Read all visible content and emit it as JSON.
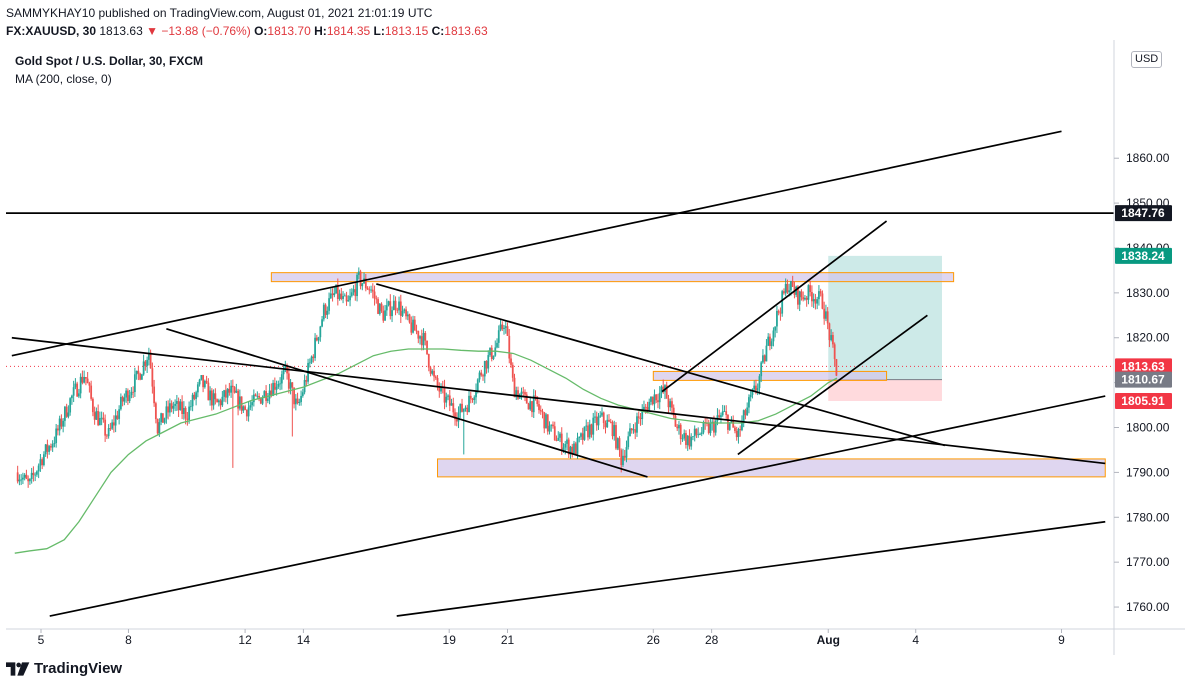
{
  "header": {
    "publisher_line": "SAMMYKHAY10 published on TradingView.com, August 01, 2021 21:01:19 UTC",
    "symbol": "FX:XAUUSD, 30",
    "last": "1813.63",
    "change": "▼ −13.88 (−0.76%)",
    "o_label": "O:",
    "o": "1813.70",
    "h_label": "H:",
    "h": "1814.35",
    "l_label": "L:",
    "l": "1813.15",
    "c_label": "C:",
    "c": "1813.63"
  },
  "legend": {
    "title": "Gold Spot / U.S. Dollar, 30, FXCM",
    "indicator": "MA (200, close, 0)"
  },
  "currency_button": "USD",
  "colors": {
    "up": "#26a69a",
    "down": "#ef5350",
    "ma": "#66bb6a",
    "zone_fill": "#d1c4e9",
    "zone_border": "#ff9800",
    "target": "#b2dfdb",
    "stop": "#ffcdd2",
    "line": "#000000"
  },
  "chart_data": {
    "type": "candlestick",
    "y_axis": {
      "min": 1756,
      "max": 1885,
      "ticks": [
        "1760.00",
        "1770.00",
        "1780.00",
        "1790.00",
        "1800.00",
        "1810.00",
        "1820.00",
        "1830.00",
        "1840.00",
        "1850.00",
        "1860.00"
      ]
    },
    "x_axis": {
      "ticks": [
        {
          "label": "5",
          "day": 5
        },
        {
          "label": "8",
          "day": 8
        },
        {
          "label": "12",
          "day": 12
        },
        {
          "label": "14",
          "day": 14
        },
        {
          "label": "19",
          "day": 19
        },
        {
          "label": "21",
          "day": 21
        },
        {
          "label": "26",
          "day": 26
        },
        {
          "label": "28",
          "day": 28
        },
        {
          "label": "Aug",
          "day": 32
        },
        {
          "label": "4",
          "day": 35
        },
        {
          "label": "9",
          "day": 40
        }
      ]
    },
    "price_path": [
      [
        4.2,
        1790
      ],
      [
        4.6,
        1787
      ],
      [
        5.0,
        1793
      ],
      [
        5.5,
        1798
      ],
      [
        6.0,
        1806
      ],
      [
        6.5,
        1812
      ],
      [
        6.8,
        1804
      ],
      [
        7.3,
        1798
      ],
      [
        7.8,
        1806
      ],
      [
        8.3,
        1811
      ],
      [
        8.7,
        1817
      ],
      [
        9.0,
        1800
      ],
      [
        9.5,
        1805
      ],
      [
        10.0,
        1803
      ],
      [
        10.5,
        1810
      ],
      [
        11.0,
        1805
      ],
      [
        11.5,
        1808
      ],
      [
        12.0,
        1804
      ],
      [
        12.4,
        1806
      ],
      [
        12.9,
        1809
      ],
      [
        13.4,
        1812
      ],
      [
        13.8,
        1804
      ],
      [
        14.3,
        1816
      ],
      [
        14.7,
        1826
      ],
      [
        15.1,
        1830
      ],
      [
        15.5,
        1827
      ],
      [
        15.9,
        1833
      ],
      [
        16.3,
        1831
      ],
      [
        16.7,
        1825
      ],
      [
        17.2,
        1828
      ],
      [
        17.6,
        1823
      ],
      [
        18.1,
        1820
      ],
      [
        18.5,
        1810
      ],
      [
        18.9,
        1806
      ],
      [
        19.3,
        1803
      ],
      [
        19.7,
        1806
      ],
      [
        20.2,
        1814
      ],
      [
        20.6,
        1818
      ],
      [
        20.9,
        1824
      ],
      [
        21.2,
        1809
      ],
      [
        21.6,
        1806
      ],
      [
        22.0,
        1805
      ],
      [
        22.4,
        1800
      ],
      [
        22.8,
        1797
      ],
      [
        23.3,
        1795
      ],
      [
        23.7,
        1799
      ],
      [
        24.2,
        1802
      ],
      [
        24.6,
        1800
      ],
      [
        24.9,
        1793
      ],
      [
        25.3,
        1800
      ],
      [
        25.7,
        1804
      ],
      [
        26.0,
        1807
      ],
      [
        26.4,
        1808
      ],
      [
        26.8,
        1800
      ],
      [
        27.2,
        1797
      ],
      [
        27.6,
        1799
      ],
      [
        28.0,
        1800
      ],
      [
        28.4,
        1803
      ],
      [
        28.9,
        1798
      ],
      [
        29.2,
        1804
      ],
      [
        29.6,
        1810
      ],
      [
        29.9,
        1818
      ],
      [
        30.2,
        1824
      ],
      [
        30.6,
        1832
      ],
      [
        31.0,
        1829
      ],
      [
        31.4,
        1830
      ],
      [
        31.8,
        1828
      ],
      [
        32.0,
        1822
      ],
      [
        32.3,
        1812
      ]
    ],
    "drops": [
      [
        19.5,
        1794
      ],
      [
        24.9,
        1790
      ],
      [
        13.6,
        1798
      ],
      [
        11.6,
        1791
      ],
      [
        26.4,
        1812
      ]
    ],
    "current_price": 1813.63,
    "moving_average_200": [
      [
        4.1,
        1772
      ],
      [
        4.6,
        1772.5
      ],
      [
        5.2,
        1773
      ],
      [
        5.8,
        1775
      ],
      [
        6.3,
        1779
      ],
      [
        6.8,
        1784
      ],
      [
        7.4,
        1790
      ],
      [
        8.0,
        1794
      ],
      [
        8.6,
        1797
      ],
      [
        9.2,
        1799
      ],
      [
        9.8,
        1801
      ],
      [
        10.4,
        1802
      ],
      [
        11.0,
        1803
      ],
      [
        11.6,
        1804.5
      ],
      [
        12.2,
        1806
      ],
      [
        12.8,
        1807
      ],
      [
        13.4,
        1808
      ],
      [
        14.0,
        1809
      ],
      [
        14.6,
        1810.5
      ],
      [
        15.2,
        1812
      ],
      [
        15.8,
        1814
      ],
      [
        16.4,
        1816
      ],
      [
        17.0,
        1817
      ],
      [
        17.6,
        1817.5
      ],
      [
        18.2,
        1817.5
      ],
      [
        18.8,
        1817.5
      ],
      [
        19.4,
        1817.2
      ],
      [
        20.0,
        1817
      ],
      [
        20.6,
        1817
      ],
      [
        21.2,
        1816.5
      ],
      [
        21.8,
        1815
      ],
      [
        22.4,
        1813
      ],
      [
        23.0,
        1811
      ],
      [
        23.6,
        1808.5
      ],
      [
        24.2,
        1806.5
      ],
      [
        24.8,
        1805
      ],
      [
        25.4,
        1804
      ],
      [
        26.0,
        1803
      ],
      [
        26.6,
        1802
      ],
      [
        27.2,
        1801.5
      ],
      [
        27.8,
        1801
      ],
      [
        28.4,
        1801
      ],
      [
        29.0,
        1801
      ],
      [
        29.6,
        1801.5
      ],
      [
        30.2,
        1803
      ],
      [
        30.8,
        1805
      ],
      [
        31.4,
        1807
      ],
      [
        32.0,
        1810
      ],
      [
        32.3,
        1811
      ]
    ],
    "trend_lines": [
      [
        [
          4.0,
          1816
        ],
        [
          40.0,
          1866
        ]
      ],
      [
        [
          4.0,
          1820
        ],
        [
          41.5,
          1792
        ]
      ],
      [
        [
          9.3,
          1822
        ],
        [
          25.8,
          1789
        ]
      ],
      [
        [
          16.5,
          1832
        ],
        [
          36.0,
          1796
        ]
      ],
      [
        [
          5.3,
          1758
        ],
        [
          41.5,
          1807
        ]
      ],
      [
        [
          17.2,
          1758
        ],
        [
          41.5,
          1779
        ]
      ],
      [
        [
          26.3,
          1808
        ],
        [
          34.0,
          1846
        ]
      ],
      [
        [
          28.9,
          1794
        ],
        [
          35.4,
          1825
        ]
      ]
    ],
    "horizontal_line": 1847.76,
    "zones": [
      {
        "x1": 12.9,
        "x2": 36.3,
        "y1": 1832.5,
        "y2": 1834.5
      },
      {
        "x1": 26.0,
        "x2": 34.0,
        "y1": 1810.5,
        "y2": 1812.5
      },
      {
        "x1": 18.6,
        "x2": 41.5,
        "y1": 1789,
        "y2": 1793
      }
    ],
    "position": {
      "x1": 32.0,
      "x2": 35.9,
      "entry": 1810.67,
      "target": 1838.24,
      "stop": 1805.91
    },
    "price_labels": [
      {
        "label": "1847.76",
        "value": 1847.76,
        "color": "#131722"
      },
      {
        "label": "1838.24",
        "value": 1838.24,
        "color": "#089981"
      },
      {
        "label": "1813.63",
        "value": 1813.63,
        "color": "#f23645"
      },
      {
        "label": "1810.67",
        "value": 1810.67,
        "color": "#787b86"
      },
      {
        "label": "1805.91",
        "value": 1805.91,
        "color": "#f23645"
      }
    ]
  },
  "footer": {
    "brand": "TradingView"
  }
}
